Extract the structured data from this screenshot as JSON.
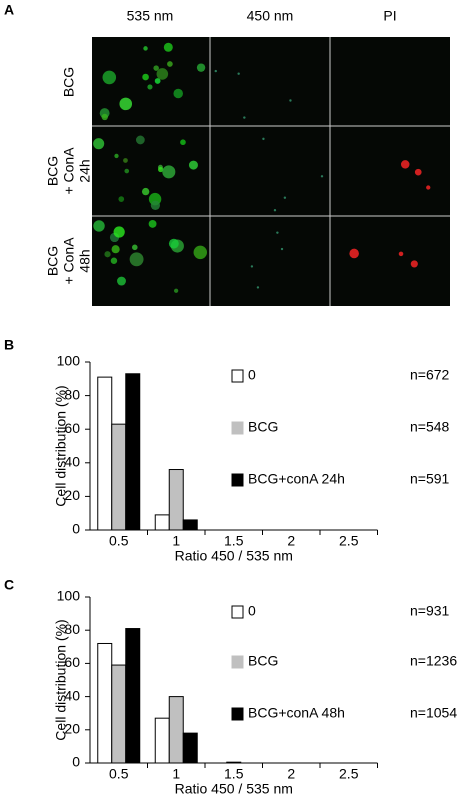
{
  "panel_a": {
    "label": "A",
    "columns": [
      "535 nm",
      "450 nm",
      "PI"
    ],
    "rows": [
      [
        "BCG"
      ],
      [
        "BCG",
        "+ ConA",
        "24h"
      ],
      [
        "BCG",
        "+ ConA",
        "48h"
      ]
    ]
  },
  "chart_data": [
    {
      "type": "bar",
      "panel_label": "B",
      "x_label": "Ratio 450 / 535 nm",
      "y_label": "Cell distribution (%)",
      "categories": [
        "0.5",
        "1",
        "1.5",
        "2",
        "2.5"
      ],
      "series": [
        {
          "name": "0",
          "n_label": "n=672",
          "color": "#ffffff",
          "values": [
            91,
            9,
            0,
            0,
            0
          ]
        },
        {
          "name": "BCG",
          "n_label": "n=548",
          "color": "#c0c0c0",
          "values": [
            63,
            36,
            0,
            0,
            0
          ]
        },
        {
          "name": "BCG+conA 24h",
          "n_label": "n=591",
          "color": "#000000",
          "values": [
            93,
            6,
            0,
            0,
            0
          ]
        }
      ],
      "ylim": [
        0,
        100
      ],
      "yticks": [
        0,
        20,
        40,
        60,
        80,
        100
      ]
    },
    {
      "type": "bar",
      "panel_label": "C",
      "x_label": "Ratio 450 / 535 nm",
      "y_label": "Cell distribution (%)",
      "categories": [
        "0.5",
        "1",
        "1.5",
        "2",
        "2.5"
      ],
      "series": [
        {
          "name": "0",
          "n_label": "n=931",
          "color": "#ffffff",
          "values": [
            72,
            27,
            0,
            0,
            0
          ]
        },
        {
          "name": "BCG",
          "n_label": "n=1236",
          "color": "#c0c0c0",
          "values": [
            59,
            40,
            0.5,
            0,
            0
          ]
        },
        {
          "name": "BCG+conA 48h",
          "n_label": "n=1054",
          "color": "#000000",
          "values": [
            81,
            18,
            0,
            0,
            0
          ]
        }
      ],
      "ylim": [
        0,
        100
      ],
      "yticks": [
        0,
        20,
        40,
        60,
        80,
        100
      ]
    }
  ]
}
